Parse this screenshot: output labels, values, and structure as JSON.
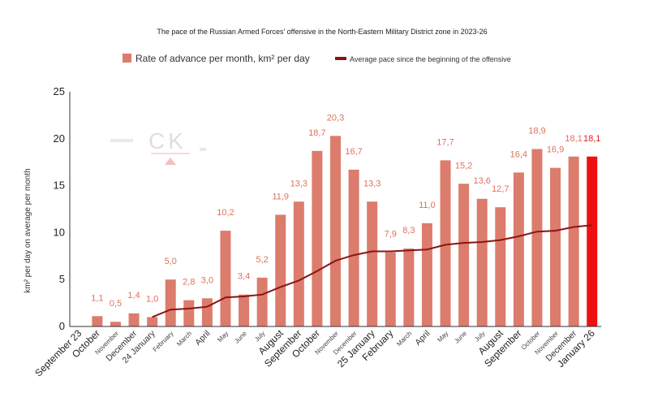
{
  "chart_data": {
    "type": "bar",
    "title": "The pace of the Russian Armed Forces' offensive in the North-Eastern Military District zone in 2023-26",
    "ylabel": "km² per day on average per month",
    "xlabel": "",
    "ylim": [
      0,
      25
    ],
    "yticks": [
      0,
      5,
      10,
      15,
      20,
      25
    ],
    "grid": false,
    "legend": "top",
    "categories": [
      "September 23",
      "October",
      "November",
      "December",
      "24 January",
      "February",
      "March",
      "April",
      "May",
      "June",
      "July",
      "August",
      "September",
      "October",
      "November",
      "December",
      "25 January",
      "February",
      "March",
      "April",
      "May",
      "June",
      "July",
      "August",
      "September",
      "October",
      "November",
      "December",
      "January 26"
    ],
    "label_styles": [
      "big",
      "big",
      "small",
      "mid",
      "mid",
      "small",
      "small",
      "mid",
      "small",
      "small",
      "small",
      "big",
      "big",
      "big",
      "small",
      "small",
      "big",
      "big",
      "small",
      "mid",
      "small",
      "small",
      "small",
      "big",
      "big",
      "small",
      "small",
      "mid",
      "big"
    ],
    "series": [
      {
        "name": "Rate of advance per month, km² per day",
        "type": "bar",
        "color": "#dc7c6c",
        "highlight_color": "#ee1010",
        "values": [
          null,
          1.1,
          0.5,
          1.4,
          1.0,
          5.0,
          2.8,
          3.0,
          10.2,
          3.4,
          5.2,
          11.9,
          13.3,
          18.7,
          20.3,
          16.7,
          13.3,
          7.9,
          8.3,
          11.0,
          17.7,
          15.2,
          13.6,
          12.7,
          16.4,
          18.9,
          16.9,
          18.1,
          18.1
        ],
        "value_labels": [
          "",
          "1,1",
          "0,5",
          "1,4",
          "1,0",
          "5,0",
          "2,8",
          "3,0",
          "10,2",
          "3,4",
          "5,2",
          "11,9",
          "13,3",
          "18,7",
          "20,3",
          "16,7",
          "13,3",
          "7,9",
          "8,3",
          "11,0",
          "17,7",
          "15,2",
          "13,6",
          "12,7",
          "16,4",
          "18,9",
          "16,9",
          "18,1",
          "18,1"
        ]
      },
      {
        "name": "Average pace since the beginning of the offensive",
        "type": "line",
        "color": "#8b1414",
        "values": [
          null,
          null,
          null,
          null,
          1.0,
          1.8,
          1.9,
          2.1,
          3.1,
          3.2,
          3.4,
          4.2,
          4.9,
          5.9,
          7.0,
          7.6,
          8.0,
          8.0,
          8.1,
          8.2,
          8.7,
          8.9,
          9.0,
          9.2,
          9.6,
          10.1,
          10.2,
          10.6,
          10.8
        ]
      }
    ]
  },
  "watermark": "CK"
}
